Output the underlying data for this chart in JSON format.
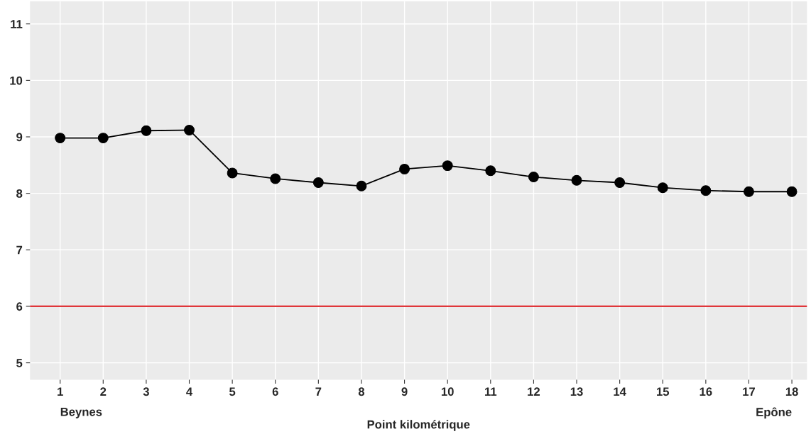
{
  "chart_data": {
    "type": "line",
    "xlabel": "Point kilométrique",
    "x": [
      1,
      2,
      3,
      4,
      5,
      6,
      7,
      8,
      9,
      10,
      11,
      12,
      13,
      14,
      15,
      16,
      17,
      18
    ],
    "series": [
      {
        "color": "#000000",
        "values": [
          8.98,
          8.98,
          9.11,
          9.12,
          8.36,
          8.26,
          8.19,
          8.13,
          8.43,
          8.49,
          8.4,
          8.29,
          8.23,
          8.19,
          8.1,
          8.05,
          8.03,
          8.03
        ]
      }
    ],
    "xlim": [
      0.3,
      18.35
    ],
    "xticks": [
      1,
      2,
      3,
      4,
      5,
      6,
      7,
      8,
      9,
      10,
      11,
      12,
      13,
      14,
      15,
      16,
      17,
      18
    ],
    "ylim": [
      4.7,
      11.4
    ],
    "yticks": [
      5,
      6,
      7,
      8,
      9,
      10,
      11
    ],
    "ref_lines": [
      {
        "axis": "y",
        "value": 6,
        "color": "#e0363a"
      }
    ],
    "annotations": [
      "Beynes",
      "Epône"
    ],
    "grid": true,
    "marker": "circle",
    "line_style": "solid",
    "legend": false
  }
}
